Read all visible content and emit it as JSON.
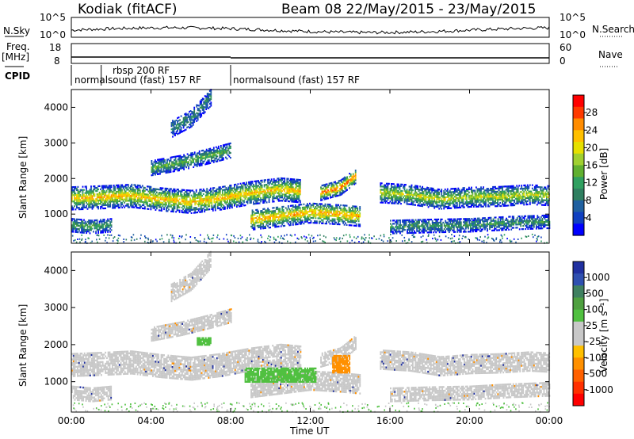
{
  "header": {
    "station": "Kodiak (fitACF)",
    "beam_time": "Beam 08 22/May/2015 - 23/May/2015"
  },
  "left_labels": {
    "nsky": "N.Sky",
    "freq": "Freq.",
    "freq_unit": "[MHz]",
    "cpid": "CPID"
  },
  "right_labels": {
    "nsearch": "N.Search",
    "nave": "Nave"
  },
  "noise_axis": {
    "left_ticks": [
      "10^5",
      "10^0"
    ],
    "right_ticks": [
      "10^5",
      "10^0"
    ]
  },
  "freq_axis": {
    "left_ticks": [
      "18",
      "8"
    ],
    "right_ticks": [
      "60",
      "0"
    ]
  },
  "cpid_segments": [
    {
      "label": "normalsound (fast) 157 RF",
      "start_hour": 0,
      "end_hour": 8
    },
    {
      "label": "rbsp 200 RF",
      "start_hour": 1.5,
      "end_hour": 8
    },
    {
      "label": "normalsound (fast) 157 RF",
      "start_hour": 8,
      "end_hour": 24
    }
  ],
  "chart_data": [
    {
      "type": "heatmap",
      "name": "power",
      "ylabel": "Slant Range [km]",
      "xlabel": "Time UT",
      "xlim": [
        0,
        24
      ],
      "ylim": [
        180,
        4500
      ],
      "x_ticks": [
        "00:00",
        "04:00",
        "08:00",
        "12:00",
        "16:00",
        "20:00",
        "00:00"
      ],
      "y_ticks": [
        1000,
        2000,
        3000,
        4000
      ],
      "colorbar": {
        "label": "Power [dB]",
        "ticks": [
          "28",
          "24",
          "20",
          "16",
          "12",
          "8",
          "4"
        ],
        "colors": [
          "#ff0000",
          "#ff3a00",
          "#ff8c00",
          "#ffc000",
          "#e6e000",
          "#a0d030",
          "#60b030",
          "#30a060",
          "#2f7f60",
          "#2060a0",
          "#1040c0",
          "#0000ff"
        ]
      },
      "bands": [
        {
          "t": [
            0,
            1.5,
            3,
            4.5,
            6,
            7.5,
            9,
            10.5,
            11.5
          ],
          "r": [
            1450,
            1480,
            1520,
            1420,
            1350,
            1450,
            1600,
            1700,
            1650
          ],
          "w": 200,
          "level": 0.75
        },
        {
          "t": [
            9,
            10.5,
            12,
            13.5,
            14.5
          ],
          "r": [
            850,
            950,
            1050,
            1000,
            950
          ],
          "w": 180,
          "level": 0.8
        },
        {
          "t": [
            15.5,
            17,
            18.5,
            20,
            21.5,
            23,
            24
          ],
          "r": [
            1600,
            1550,
            1420,
            1480,
            1500,
            1550,
            1520
          ],
          "w": 170,
          "level": 0.6
        },
        {
          "t": [
            16,
            18,
            20,
            22,
            24
          ],
          "r": [
            650,
            680,
            700,
            760,
            800
          ],
          "w": 120,
          "level": 0.35
        },
        {
          "t": [
            4,
            5.5,
            7,
            8
          ],
          "r": [
            2300,
            2450,
            2650,
            2800
          ],
          "w": 130,
          "level": 0.45
        },
        {
          "t": [
            5,
            6,
            7
          ],
          "r": [
            3400,
            3700,
            4300
          ],
          "w": 150,
          "level": 0.3
        },
        {
          "t": [
            0,
            1,
            2
          ],
          "r": [
            700,
            650,
            700
          ],
          "w": 120,
          "level": 0.4
        },
        {
          "t": [
            12.5,
            13.5,
            14.3
          ],
          "r": [
            1600,
            1750,
            2100
          ],
          "w": 130,
          "level": 0.9
        }
      ]
    },
    {
      "type": "heatmap",
      "name": "velocity",
      "ylabel": "Slant Range [km]",
      "xlabel": "Time UT",
      "xlim": [
        0,
        24
      ],
      "ylim": [
        180,
        4500
      ],
      "x_ticks": [
        "00:00",
        "04:00",
        "08:00",
        "12:00",
        "16:00",
        "20:00",
        "00:00"
      ],
      "y_ticks": [
        1000,
        2000,
        3000,
        4000
      ],
      "colorbar": {
        "label": "Velocity [m s⁻¹]",
        "ticks": [
          "1000",
          "500",
          "100",
          "25",
          "-25",
          "-100",
          "-500",
          "-1000"
        ],
        "colors": [
          "#2030a0",
          "#2f50b0",
          "#3f8060",
          "#4fa040",
          "#50c040",
          "#c8c8c8",
          "#c8c8c8",
          "#ffc000",
          "#ff9000",
          "#ff6000",
          "#ff3000",
          "#ff0000"
        ]
      },
      "patches": [
        {
          "t0": 8.7,
          "t1": 12.3,
          "r0": 1000,
          "r1": 1400,
          "velocity": 100
        },
        {
          "t0": 13.1,
          "t1": 14.0,
          "r0": 1250,
          "r1": 1700,
          "velocity": -100
        },
        {
          "t0": 6.3,
          "t1": 7.0,
          "r0": 2000,
          "r1": 2200,
          "velocity": 100
        }
      ]
    }
  ]
}
